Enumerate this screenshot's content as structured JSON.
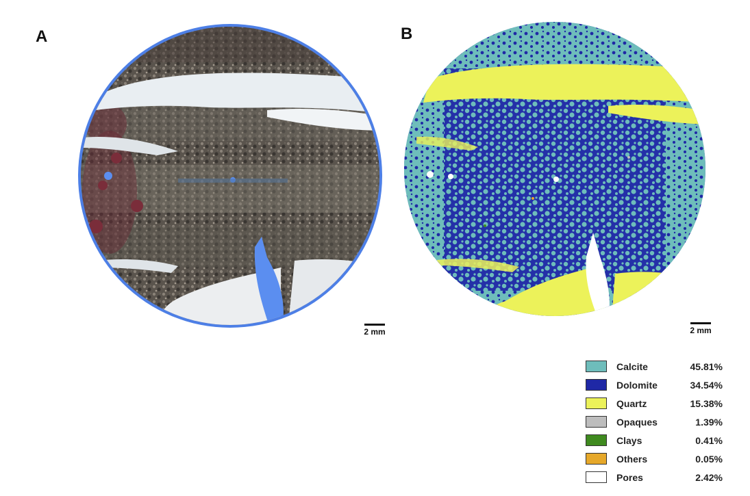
{
  "panels": {
    "a": {
      "letter": "A",
      "scale_label": "2 mm"
    },
    "b": {
      "letter": "B",
      "scale_label": "2 mm"
    }
  },
  "colors": {
    "ring": "#4d7fe6",
    "rock_dark": "#4f4a44",
    "rock_mid": "#7a736a",
    "quartz_vein_photo": "#e9eef2",
    "pore_photo": "#5b8ef0",
    "stain_red": "#6a2a35"
  },
  "legend": [
    {
      "label": "Calcite",
      "value": "45.81%",
      "color": "#6ebdbb"
    },
    {
      "label": "Dolomite",
      "value": "34.54%",
      "color": "#1f28a6"
    },
    {
      "label": "Quartz",
      "value": "15.38%",
      "color": "#ecf25a"
    },
    {
      "label": "Opaques",
      "value": "1.39%",
      "color": "#bdbdbd"
    },
    {
      "label": "Clays",
      "value": "0.41%",
      "color": "#3f8a1f"
    },
    {
      "label": "Others",
      "value": "0.05%",
      "color": "#e6a82a"
    },
    {
      "label": "Pores",
      "value": "2.42%",
      "color": "#ffffff"
    }
  ]
}
